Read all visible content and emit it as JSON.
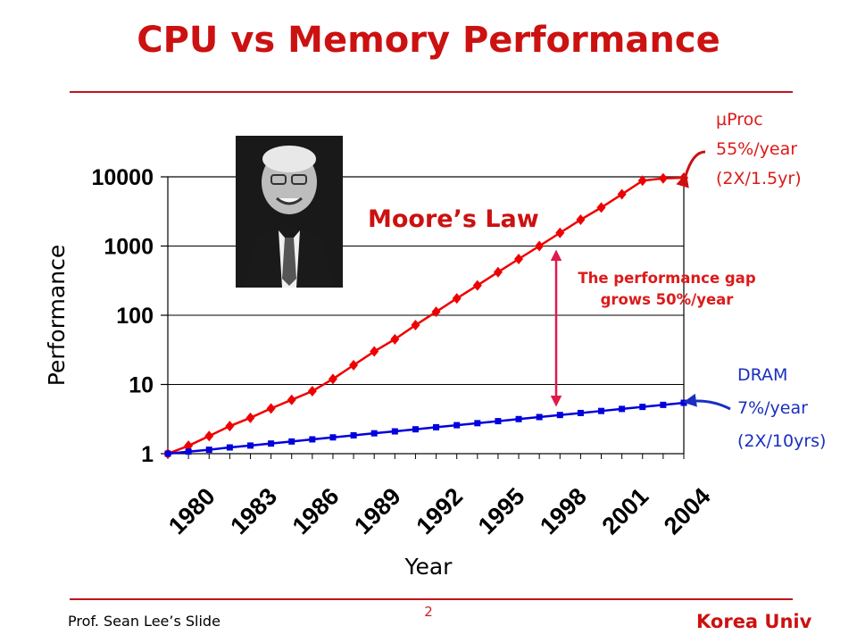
{
  "slide": {
    "title": "CPU vs Memory Performance",
    "footer_left": "Prof. Sean Lee’s Slide",
    "page_number": "2",
    "footer_right": "Korea Univ"
  },
  "annotations": {
    "moores_law": "Moore’s Law",
    "gap_line1": "The performance gap",
    "gap_line2": "grows 50%/year",
    "uproc_line1": "µProc",
    "uproc_line2": "55%/year",
    "uproc_line3": "(2X/1.5yr)",
    "dram_line1": "DRAM",
    "dram_line2": "7%/year",
    "dram_line3": "(2X/10yrs)"
  },
  "colors": {
    "title": "#cc1111",
    "uproc": "#ee0000",
    "dram": "#0000dd",
    "gap_arrow": "#e01a4a"
  },
  "chart_data": {
    "type": "line",
    "title": "",
    "xlabel": "Year",
    "ylabel": "Performance",
    "yscale": "log",
    "ylim": [
      1,
      10000
    ],
    "yticks": [
      1,
      10,
      100,
      1000,
      10000
    ],
    "ytick_labels": [
      "1",
      "10",
      "100",
      "1000",
      "10000"
    ],
    "xlim": [
      1980,
      2005
    ],
    "xticks": [
      1980,
      1983,
      1986,
      1989,
      1992,
      1995,
      1998,
      2001,
      2004
    ],
    "xtick_labels": [
      "1980",
      "1983",
      "1986",
      "1989",
      "1992",
      "1995",
      "1998",
      "2001",
      "2004"
    ],
    "x": [
      1980,
      1981,
      1982,
      1983,
      1984,
      1985,
      1986,
      1987,
      1988,
      1989,
      1990,
      1991,
      1992,
      1993,
      1994,
      1995,
      1996,
      1997,
      1998,
      1999,
      2000,
      2001,
      2002,
      2003,
      2004,
      2005
    ],
    "series": [
      {
        "name": "µProc",
        "marker": "diamond",
        "values": [
          1,
          1.3,
          1.8,
          2.5,
          3.3,
          4.5,
          6,
          8,
          12,
          19,
          30,
          45,
          72,
          112,
          175,
          270,
          420,
          650,
          1000,
          1550,
          2400,
          3600,
          5600,
          8800,
          9500,
          9700
        ]
      },
      {
        "name": "DRAM",
        "marker": "square",
        "values": [
          1,
          1.07,
          1.14,
          1.23,
          1.31,
          1.4,
          1.5,
          1.61,
          1.72,
          1.84,
          1.97,
          2.1,
          2.25,
          2.41,
          2.58,
          2.76,
          2.95,
          3.16,
          3.38,
          3.62,
          3.87,
          4.14,
          4.43,
          4.74,
          5.07,
          5.43
        ]
      }
    ]
  }
}
